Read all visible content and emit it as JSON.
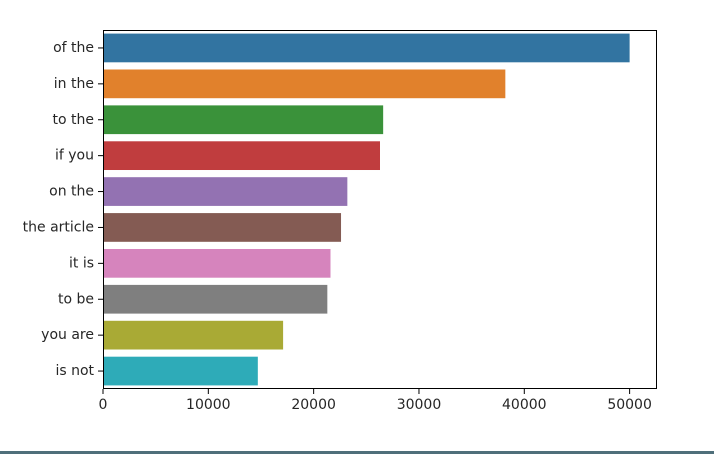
{
  "chart_data": {
    "type": "bar",
    "orientation": "horizontal",
    "title": "",
    "xlabel": "",
    "ylabel": "",
    "categories": [
      "of the",
      "in the",
      "to the",
      "if you",
      "on the",
      "the article",
      "it is",
      "to be",
      "you are",
      "is not"
    ],
    "values": [
      50000,
      38200,
      26600,
      26300,
      23200,
      22600,
      21600,
      21300,
      17100,
      14700
    ],
    "colors": [
      "#3274a1",
      "#e1812c",
      "#3a923a",
      "#c03d3e",
      "#9372b2",
      "#845b53",
      "#d684bd",
      "#7f7f7f",
      "#a9aa35",
      "#2eabb8"
    ],
    "xlim": [
      0,
      52600
    ],
    "xticks": [
      0,
      10000,
      20000,
      30000,
      40000,
      50000
    ],
    "xtick_labels": [
      "0",
      "10000",
      "20000",
      "30000",
      "40000",
      "50000"
    ],
    "grid": false,
    "legend": "none"
  }
}
